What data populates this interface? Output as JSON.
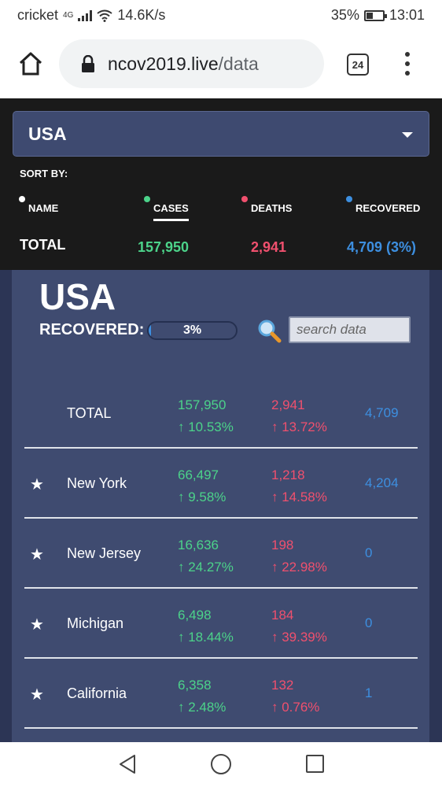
{
  "status_bar": {
    "carrier": "cricket",
    "network": "4G",
    "speed": "14.6K/s",
    "battery": "35%",
    "time": "13:01"
  },
  "browser": {
    "url_domain": "ncov2019.live",
    "url_path": "/data",
    "tab_count": "24"
  },
  "selector": {
    "country": "USA"
  },
  "sort": {
    "label": "SORT BY:",
    "options": [
      {
        "label": "NAME",
        "dot_color": "#ffffff"
      },
      {
        "label": "CASES",
        "dot_color": "#4cd38a",
        "active": true
      },
      {
        "label": "DEATHS",
        "dot_color": "#f0506e"
      },
      {
        "label": "RECOVERED",
        "dot_color": "#3d8fe0"
      }
    ]
  },
  "totals": {
    "label": "TOTAL",
    "cases": "157,950",
    "deaths": "2,941",
    "recovered": "4,709 (3%)"
  },
  "content": {
    "title": "USA",
    "recovered_label": "RECOVERED:",
    "recovered_pct_text": "3%",
    "recovered_fraction": 0.03,
    "search_placeholder": "search data"
  },
  "table": {
    "rows": [
      {
        "star": "",
        "name": "TOTAL",
        "cases": "157,950",
        "cases_change": "↑ 10.53%",
        "deaths": "2,941",
        "deaths_change": "↑ 13.72%",
        "recovered": "4,709"
      },
      {
        "star": "★",
        "name": "New York",
        "cases": "66,497",
        "cases_change": "↑ 9.58%",
        "deaths": "1,218",
        "deaths_change": "↑ 14.58%",
        "recovered": "4,204"
      },
      {
        "star": "★",
        "name": "New Jersey",
        "cases": "16,636",
        "cases_change": "↑ 24.27%",
        "deaths": "198",
        "deaths_change": "↑ 22.98%",
        "recovered": "0"
      },
      {
        "star": "★",
        "name": "Michigan",
        "cases": "6,498",
        "cases_change": "↑ 18.44%",
        "deaths": "184",
        "deaths_change": "↑ 39.39%",
        "recovered": "0"
      },
      {
        "star": "★",
        "name": "California",
        "cases": "6,358",
        "cases_change": "↑ 2.48%",
        "deaths": "132",
        "deaths_change": "↑ 0.76%",
        "recovered": "1"
      }
    ]
  },
  "colors": {
    "cases": "#4cd38a",
    "deaths": "#f0506e",
    "recovered": "#3d8fe0"
  }
}
